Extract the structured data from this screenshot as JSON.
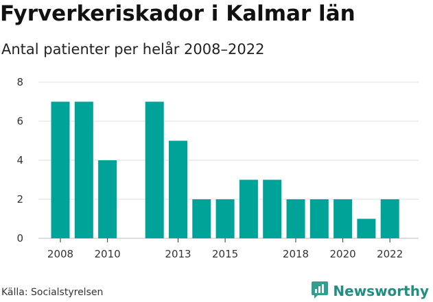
{
  "header": {
    "title": "Fyrverkeriskador i Kalmar län",
    "subtitle": "Antal patienter per helår 2008–2022"
  },
  "footer": {
    "source": "Källa: Socialstyrelsen",
    "brand": "Newsworthy",
    "brand_icon": "chart-logo-icon"
  },
  "colors": {
    "bar": "#00a398",
    "grid": "#dcdcdc",
    "brand": "#1f8f7f"
  },
  "chart_data": {
    "type": "bar",
    "categories": [
      "2008",
      "2009",
      "2010",
      "2011",
      "2012",
      "2013",
      "2014",
      "2015",
      "2016",
      "2017",
      "2018",
      "2019",
      "2020",
      "2021",
      "2022"
    ],
    "values": [
      7,
      7,
      4,
      0,
      7,
      5,
      2,
      2,
      3,
      3,
      2,
      2,
      2,
      1,
      2
    ],
    "x_tick_labels": [
      "2008",
      "2010",
      "2013",
      "2015",
      "2018",
      "2020",
      "2022"
    ],
    "y_ticks": [
      0,
      2,
      4,
      6,
      8
    ],
    "ylim": [
      0,
      8
    ],
    "xlabel": "",
    "ylabel": "",
    "grid": true
  }
}
